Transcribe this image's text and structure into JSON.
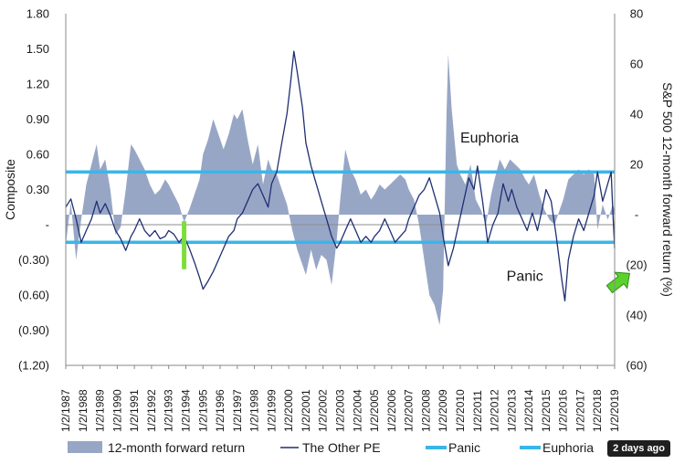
{
  "chart_data": {
    "type": "area+line",
    "title": "",
    "ylabel_left": "Composite",
    "ylabel_right": "S&P 500 12-month forward return (%)",
    "y_left_ticks": [
      "1.80",
      "1.50",
      "1.20",
      "0.90",
      "0.60",
      "0.30",
      "-",
      "(0.30)",
      "(0.60)",
      "(0.90)",
      "(1.20)"
    ],
    "y_left_range": [
      -1.2,
      1.8
    ],
    "y_right_ticks": [
      "80",
      "60",
      "40",
      "20",
      "-",
      "(20)",
      "(40)",
      "(60)"
    ],
    "y_right_range": [
      -60,
      80
    ],
    "x_tick_labels": [
      "1/2/1987",
      "1/2/1988",
      "1/2/1989",
      "1/2/1990",
      "1/2/1991",
      "1/2/1992",
      "1/2/1993",
      "1/2/1994",
      "1/2/1995",
      "1/2/1996",
      "1/2/1997",
      "1/2/1998",
      "1/2/1999",
      "1/2/2000",
      "1/2/2001",
      "1/2/2002",
      "1/2/2003",
      "1/2/2004",
      "1/2/2005",
      "1/2/2006",
      "1/2/2007",
      "1/2/2008",
      "1/2/2009",
      "1/2/2010",
      "1/2/2011",
      "1/2/2012",
      "1/2/2013",
      "1/2/2014",
      "1/2/2015",
      "1/2/2016",
      "1/2/2017",
      "1/2/2018",
      "1/2/2019"
    ],
    "x_range": [
      1987.0,
      2019.0
    ],
    "series": [
      {
        "name": "12-month forward return",
        "kind": "area",
        "axis": "right",
        "color": "#98a6c6",
        "points": [
          [
            1987.0,
            -12
          ],
          [
            1987.3,
            5
          ],
          [
            1987.6,
            -18
          ],
          [
            1987.9,
            -2
          ],
          [
            1988.2,
            12
          ],
          [
            1988.5,
            20
          ],
          [
            1988.8,
            28
          ],
          [
            1989.0,
            18
          ],
          [
            1989.3,
            22
          ],
          [
            1989.6,
            10
          ],
          [
            1989.9,
            -8
          ],
          [
            1990.2,
            -5
          ],
          [
            1990.5,
            10
          ],
          [
            1990.8,
            28
          ],
          [
            1991.0,
            26
          ],
          [
            1991.3,
            22
          ],
          [
            1991.6,
            18
          ],
          [
            1991.9,
            12
          ],
          [
            1992.2,
            8
          ],
          [
            1992.5,
            10
          ],
          [
            1992.8,
            14
          ],
          [
            1993.0,
            12
          ],
          [
            1993.3,
            8
          ],
          [
            1993.6,
            4
          ],
          [
            1993.9,
            -3
          ],
          [
            1994.2,
            2
          ],
          [
            1994.5,
            8
          ],
          [
            1994.8,
            14
          ],
          [
            1995.0,
            24
          ],
          [
            1995.3,
            30
          ],
          [
            1995.6,
            38
          ],
          [
            1995.9,
            32
          ],
          [
            1996.2,
            26
          ],
          [
            1996.5,
            32
          ],
          [
            1996.8,
            40
          ],
          [
            1997.0,
            38
          ],
          [
            1997.3,
            42
          ],
          [
            1997.6,
            30
          ],
          [
            1997.9,
            20
          ],
          [
            1998.2,
            28
          ],
          [
            1998.5,
            12
          ],
          [
            1998.8,
            22
          ],
          [
            1999.0,
            18
          ],
          [
            1999.3,
            16
          ],
          [
            1999.6,
            10
          ],
          [
            1999.9,
            4
          ],
          [
            2000.2,
            -6
          ],
          [
            2000.5,
            -14
          ],
          [
            2000.8,
            -20
          ],
          [
            2001.0,
            -24
          ],
          [
            2001.3,
            -14
          ],
          [
            2001.6,
            -22
          ],
          [
            2001.9,
            -16
          ],
          [
            2002.2,
            -18
          ],
          [
            2002.5,
            -28
          ],
          [
            2002.8,
            -10
          ],
          [
            2003.0,
            6
          ],
          [
            2003.3,
            26
          ],
          [
            2003.6,
            18
          ],
          [
            2003.9,
            14
          ],
          [
            2004.2,
            8
          ],
          [
            2004.5,
            10
          ],
          [
            2004.8,
            6
          ],
          [
            2005.0,
            8
          ],
          [
            2005.3,
            12
          ],
          [
            2005.6,
            10
          ],
          [
            2005.9,
            12
          ],
          [
            2006.2,
            14
          ],
          [
            2006.5,
            16
          ],
          [
            2006.8,
            14
          ],
          [
            2007.0,
            10
          ],
          [
            2007.3,
            6
          ],
          [
            2007.6,
            -4
          ],
          [
            2007.9,
            -18
          ],
          [
            2008.2,
            -32
          ],
          [
            2008.5,
            -36
          ],
          [
            2008.8,
            -44
          ],
          [
            2009.0,
            -30
          ],
          [
            2009.2,
            40
          ],
          [
            2009.3,
            64
          ],
          [
            2009.5,
            42
          ],
          [
            2009.8,
            20
          ],
          [
            2010.0,
            16
          ],
          [
            2010.3,
            12
          ],
          [
            2010.6,
            20
          ],
          [
            2010.9,
            6
          ],
          [
            2011.2,
            2
          ],
          [
            2011.5,
            -4
          ],
          [
            2011.8,
            8
          ],
          [
            2012.0,
            14
          ],
          [
            2012.3,
            22
          ],
          [
            2012.6,
            18
          ],
          [
            2012.9,
            22
          ],
          [
            2013.2,
            20
          ],
          [
            2013.5,
            18
          ],
          [
            2013.8,
            14
          ],
          [
            2014.0,
            12
          ],
          [
            2014.3,
            16
          ],
          [
            2014.6,
            8
          ],
          [
            2014.9,
            2
          ],
          [
            2015.2,
            -2
          ],
          [
            2015.5,
            -4
          ],
          [
            2015.8,
            2
          ],
          [
            2016.0,
            6
          ],
          [
            2016.3,
            14
          ],
          [
            2016.6,
            16
          ],
          [
            2016.9,
            18
          ],
          [
            2017.2,
            16
          ],
          [
            2017.5,
            18
          ],
          [
            2017.8,
            16
          ],
          [
            2018.0,
            -6
          ],
          [
            2018.3,
            4
          ],
          [
            2018.6,
            -2
          ],
          [
            2018.9,
            4
          ],
          [
            2019.0,
            2
          ]
        ]
      },
      {
        "name": "The Other PE",
        "kind": "line",
        "axis": "left",
        "color": "#1f2f72",
        "points": [
          [
            1987.0,
            0.15
          ],
          [
            1987.3,
            0.22
          ],
          [
            1987.6,
            0.05
          ],
          [
            1987.9,
            -0.15
          ],
          [
            1988.2,
            -0.05
          ],
          [
            1988.5,
            0.05
          ],
          [
            1988.8,
            0.2
          ],
          [
            1989.0,
            0.1
          ],
          [
            1989.3,
            0.18
          ],
          [
            1989.6,
            0.08
          ],
          [
            1989.9,
            -0.05
          ],
          [
            1990.2,
            -0.12
          ],
          [
            1990.5,
            -0.22
          ],
          [
            1990.8,
            -0.1
          ],
          [
            1991.0,
            -0.05
          ],
          [
            1991.3,
            0.05
          ],
          [
            1991.6,
            -0.05
          ],
          [
            1991.9,
            -0.1
          ],
          [
            1992.2,
            -0.05
          ],
          [
            1992.5,
            -0.12
          ],
          [
            1992.8,
            -0.1
          ],
          [
            1993.0,
            -0.05
          ],
          [
            1993.3,
            -0.08
          ],
          [
            1993.6,
            -0.15
          ],
          [
            1993.9,
            -0.1
          ],
          [
            1994.2,
            -0.2
          ],
          [
            1994.5,
            -0.32
          ],
          [
            1994.8,
            -0.45
          ],
          [
            1995.0,
            -0.55
          ],
          [
            1995.3,
            -0.48
          ],
          [
            1995.6,
            -0.4
          ],
          [
            1995.9,
            -0.3
          ],
          [
            1996.2,
            -0.2
          ],
          [
            1996.5,
            -0.1
          ],
          [
            1996.8,
            -0.05
          ],
          [
            1997.0,
            0.05
          ],
          [
            1997.3,
            0.1
          ],
          [
            1997.6,
            0.2
          ],
          [
            1997.9,
            0.3
          ],
          [
            1998.2,
            0.35
          ],
          [
            1998.5,
            0.25
          ],
          [
            1998.8,
            0.15
          ],
          [
            1999.0,
            0.35
          ],
          [
            1999.3,
            0.45
          ],
          [
            1999.6,
            0.7
          ],
          [
            1999.9,
            0.95
          ],
          [
            2000.1,
            1.2
          ],
          [
            2000.3,
            1.48
          ],
          [
            2000.5,
            1.3
          ],
          [
            2000.8,
            1.0
          ],
          [
            2001.0,
            0.7
          ],
          [
            2001.3,
            0.5
          ],
          [
            2001.6,
            0.35
          ],
          [
            2001.9,
            0.2
          ],
          [
            2002.2,
            0.05
          ],
          [
            2002.5,
            -0.1
          ],
          [
            2002.8,
            -0.2
          ],
          [
            2003.0,
            -0.15
          ],
          [
            2003.3,
            -0.05
          ],
          [
            2003.6,
            0.05
          ],
          [
            2003.9,
            -0.05
          ],
          [
            2004.2,
            -0.15
          ],
          [
            2004.5,
            -0.1
          ],
          [
            2004.8,
            -0.15
          ],
          [
            2005.0,
            -0.1
          ],
          [
            2005.3,
            -0.05
          ],
          [
            2005.6,
            0.05
          ],
          [
            2005.9,
            -0.05
          ],
          [
            2006.2,
            -0.15
          ],
          [
            2006.5,
            -0.1
          ],
          [
            2006.8,
            -0.05
          ],
          [
            2007.0,
            0.05
          ],
          [
            2007.3,
            0.15
          ],
          [
            2007.6,
            0.25
          ],
          [
            2007.9,
            0.3
          ],
          [
            2008.2,
            0.4
          ],
          [
            2008.5,
            0.25
          ],
          [
            2008.8,
            0.1
          ],
          [
            2009.0,
            -0.1
          ],
          [
            2009.3,
            -0.35
          ],
          [
            2009.6,
            -0.2
          ],
          [
            2009.9,
            0.0
          ],
          [
            2010.2,
            0.2
          ],
          [
            2010.5,
            0.4
          ],
          [
            2010.8,
            0.3
          ],
          [
            2011.0,
            0.5
          ],
          [
            2011.3,
            0.2
          ],
          [
            2011.6,
            -0.15
          ],
          [
            2011.9,
            0.0
          ],
          [
            2012.2,
            0.1
          ],
          [
            2012.5,
            0.35
          ],
          [
            2012.8,
            0.2
          ],
          [
            2013.0,
            0.3
          ],
          [
            2013.3,
            0.15
          ],
          [
            2013.6,
            0.05
          ],
          [
            2013.9,
            -0.05
          ],
          [
            2014.2,
            0.1
          ],
          [
            2014.5,
            -0.05
          ],
          [
            2014.8,
            0.15
          ],
          [
            2015.0,
            0.3
          ],
          [
            2015.3,
            0.2
          ],
          [
            2015.6,
            -0.1
          ],
          [
            2015.9,
            -0.45
          ],
          [
            2016.1,
            -0.65
          ],
          [
            2016.3,
            -0.3
          ],
          [
            2016.6,
            -0.1
          ],
          [
            2016.9,
            0.05
          ],
          [
            2017.2,
            -0.05
          ],
          [
            2017.5,
            0.1
          ],
          [
            2017.8,
            0.25
          ],
          [
            2018.0,
            0.45
          ],
          [
            2018.3,
            0.2
          ],
          [
            2018.6,
            0.35
          ],
          [
            2018.8,
            0.45
          ],
          [
            2018.9,
            0.1
          ],
          [
            2019.0,
            -0.2
          ]
        ]
      },
      {
        "name": "Panic",
        "kind": "hline",
        "axis": "left",
        "value": -0.15,
        "color": "#39b6e8"
      },
      {
        "name": "Euphoria",
        "kind": "hline",
        "axis": "left",
        "value": 0.45,
        "color": "#39b6e8"
      }
    ],
    "annotations": [
      {
        "text": "Euphoria",
        "x": 2010.0,
        "y": 0.7
      },
      {
        "text": "Panic",
        "x": 2012.7,
        "y": -0.48
      }
    ],
    "highlights": [
      {
        "kind": "green-bar",
        "x": 1993.9,
        "y_from": 0.03,
        "y_to": -0.38,
        "color": "#7ddd3a"
      },
      {
        "kind": "green-arrow",
        "x": 2018.7,
        "y": -0.55,
        "color": "#5bd12e"
      }
    ],
    "grid": false,
    "legend_position": "bottom"
  },
  "timestamp_badge": "2 days ago"
}
